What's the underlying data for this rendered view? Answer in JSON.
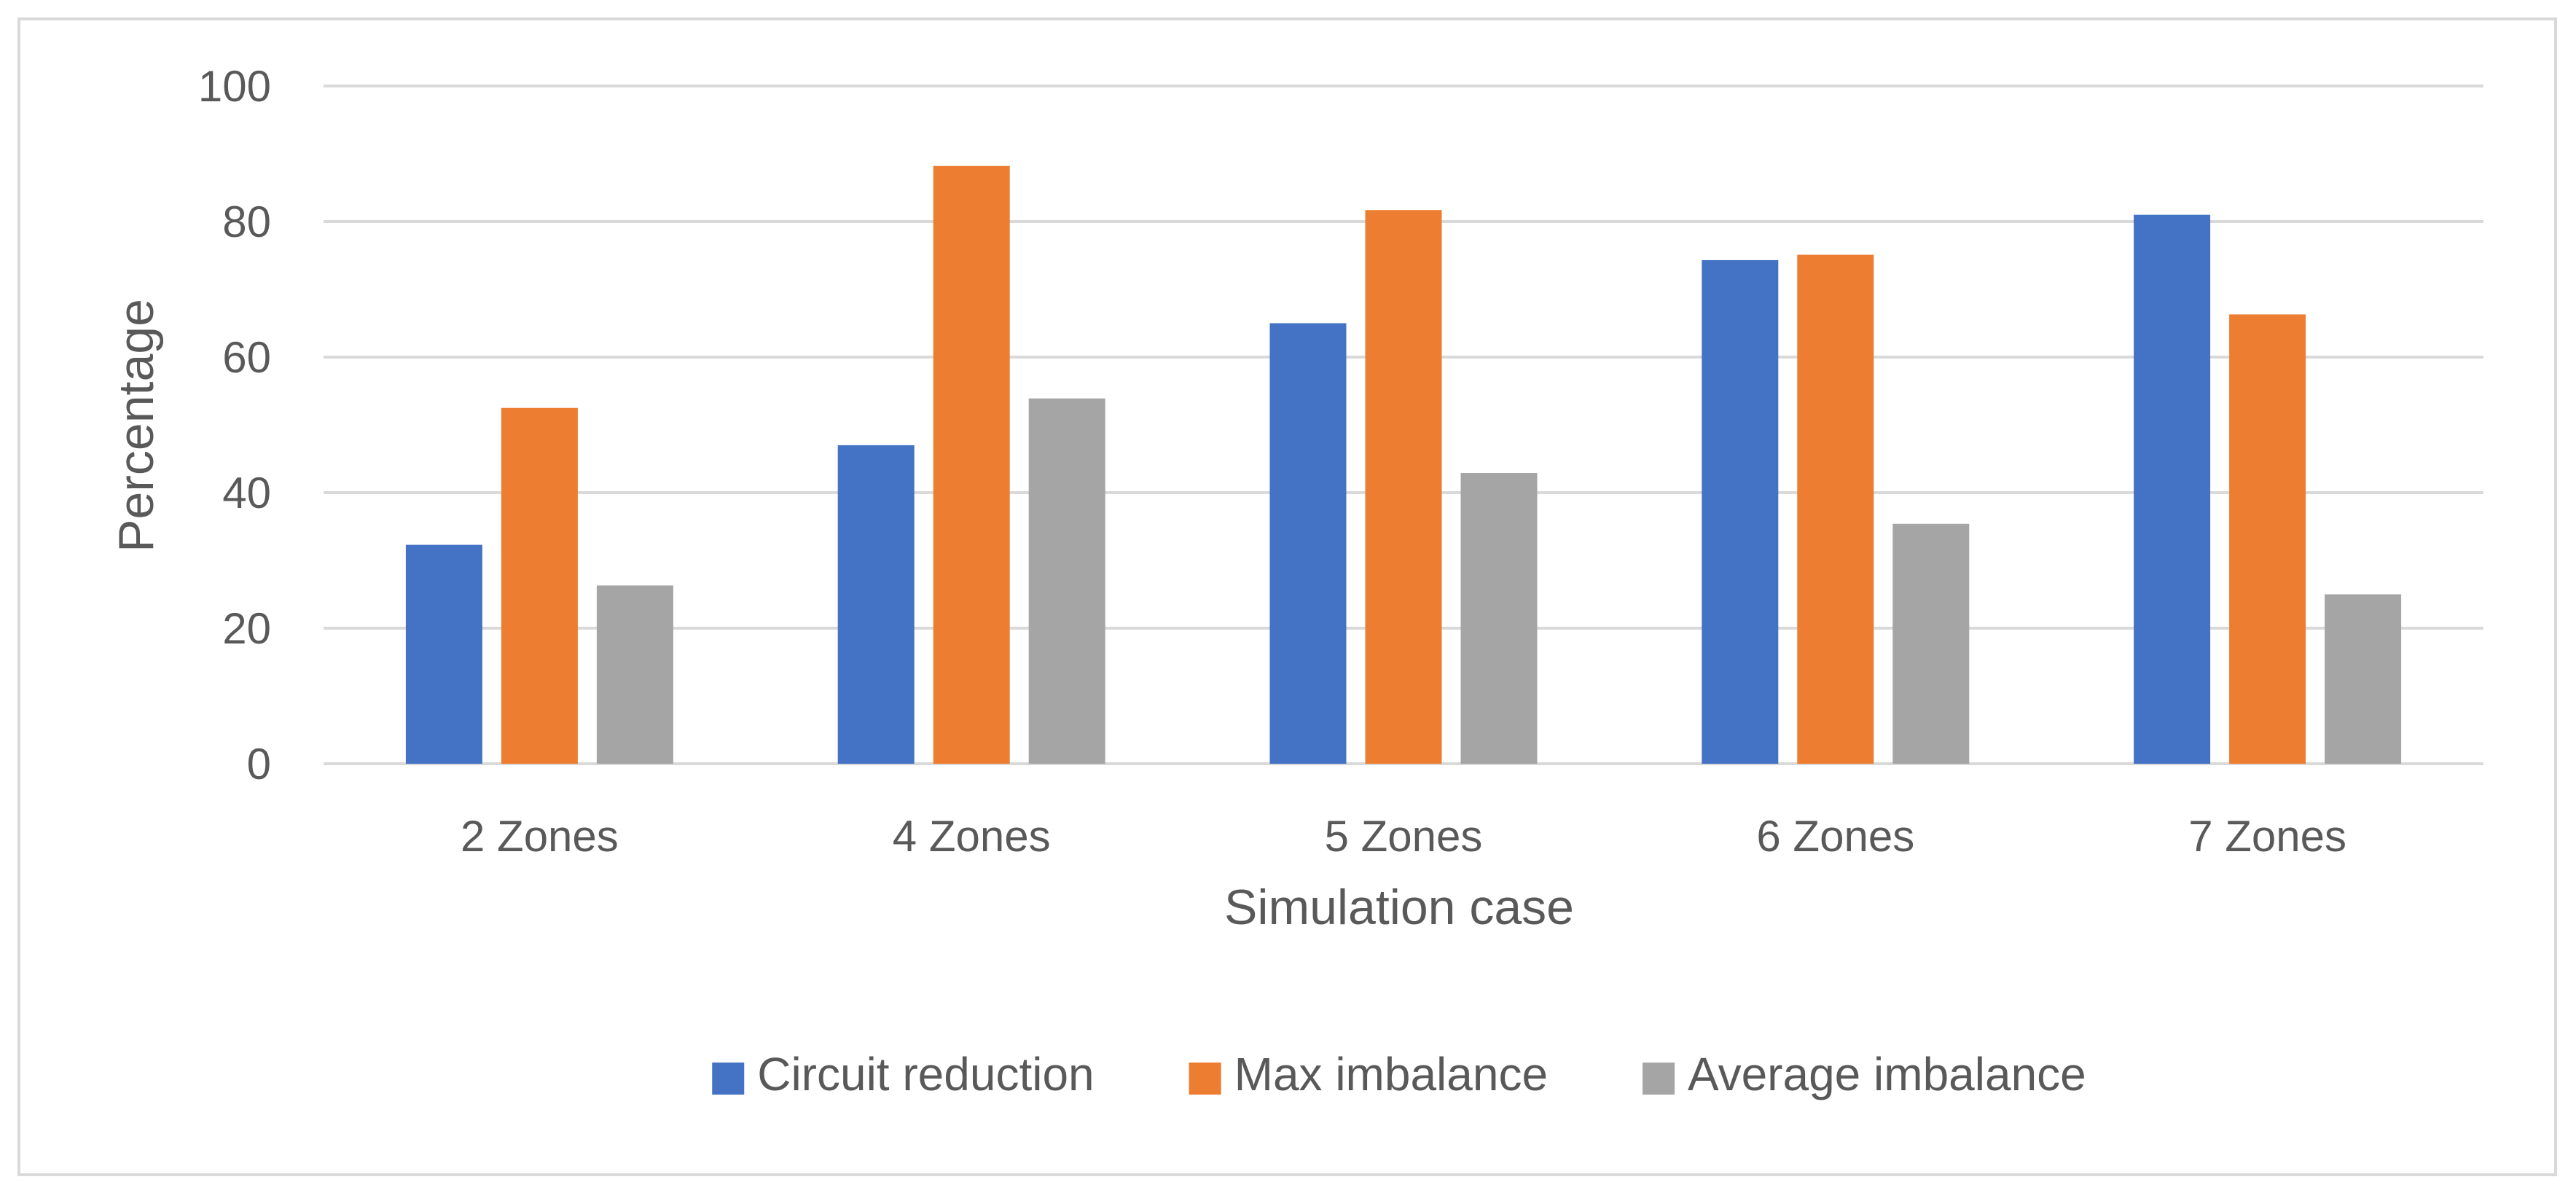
{
  "chart_data": {
    "type": "bar",
    "title": "",
    "xlabel": "Simulation case",
    "ylabel": "Percentage",
    "ylim": [
      0,
      100
    ],
    "yticks": [
      "0",
      "20",
      "40",
      "60",
      "80",
      "100"
    ],
    "grid": true,
    "legend_position": "bottom",
    "categories": [
      "2 Zones",
      "4 Zones",
      "5 Zones",
      "6 Zones",
      "7 Zones"
    ],
    "series": [
      {
        "name": "Circuit reduction",
        "color": "#4472c4",
        "values": [
          32.3,
          47,
          65,
          74.3,
          81
        ]
      },
      {
        "name": "Max imbalance",
        "color": "#ed7d31",
        "values": [
          52.5,
          88.2,
          81.7,
          75.1,
          66.3
        ]
      },
      {
        "name": "Average imbalance",
        "color": "#a5a5a5",
        "values": [
          26.3,
          53.9,
          42.9,
          35.4,
          25
        ]
      }
    ]
  }
}
